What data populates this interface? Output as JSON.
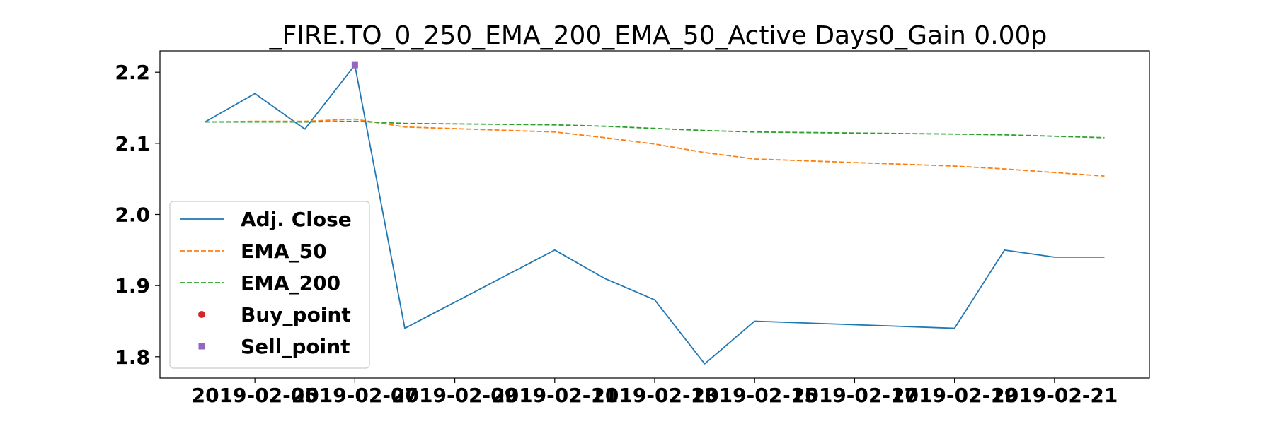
{
  "chart_data": {
    "type": "line",
    "title": "_FIRE.TO_0_250_EMA_200_EMA_50_Active Days0_Gain   0.00p",
    "xlabel": "",
    "ylabel": "",
    "ylim": [
      1.77,
      2.23
    ],
    "y_ticks": [
      1.8,
      1.9,
      2.0,
      2.1,
      2.2
    ],
    "y_tick_labels": [
      "1.8",
      "1.9",
      "2.0",
      "2.1",
      "2.2"
    ],
    "x_ticks": [
      "2019-02-05",
      "2019-02-07",
      "2019-02-09",
      "2019-02-11",
      "2019-02-13",
      "2019-02-15",
      "2019-02-17",
      "2019-02-19",
      "2019-02-21"
    ],
    "x": [
      "2019-02-04",
      "2019-02-05",
      "2019-02-06",
      "2019-02-07",
      "2019-02-08",
      "2019-02-11",
      "2019-02-12",
      "2019-02-13",
      "2019-02-14",
      "2019-02-15",
      "2019-02-19",
      "2019-02-20",
      "2019-02-21",
      "2019-02-22"
    ],
    "series": [
      {
        "name": "Adj. Close",
        "color": "#1f77b4",
        "style": "solid",
        "values": [
          2.13,
          2.17,
          2.12,
          2.21,
          1.84,
          1.95,
          1.91,
          1.88,
          1.79,
          1.85,
          1.84,
          1.95,
          1.94,
          1.94
        ]
      },
      {
        "name": "EMA_50",
        "color": "#ff7f0e",
        "style": "dashed",
        "values": [
          2.13,
          2.131,
          2.131,
          2.134,
          2.123,
          2.116,
          2.108,
          2.099,
          2.087,
          2.078,
          2.068,
          2.064,
          2.059,
          2.054
        ]
      },
      {
        "name": "EMA_200",
        "color": "#2ca02c",
        "style": "dashed",
        "values": [
          2.13,
          2.13,
          2.13,
          2.131,
          2.128,
          2.126,
          2.124,
          2.121,
          2.118,
          2.116,
          2.113,
          2.112,
          2.11,
          2.108
        ]
      }
    ],
    "buy_points": [],
    "sell_points": [
      {
        "x": "2019-02-07",
        "y": 2.21
      }
    ],
    "legend": [
      {
        "label": "Adj. Close",
        "marker": "line",
        "color": "#1f77b4"
      },
      {
        "label": "EMA_50",
        "marker": "dashed",
        "color": "#ff7f0e"
      },
      {
        "label": "EMA_200",
        "marker": "dashed",
        "color": "#2ca02c"
      },
      {
        "label": "Buy_point",
        "marker": "circle",
        "color": "#d62728"
      },
      {
        "label": "Sell_point",
        "marker": "square",
        "color": "#9467bd"
      }
    ],
    "legend_position": "center-left"
  }
}
